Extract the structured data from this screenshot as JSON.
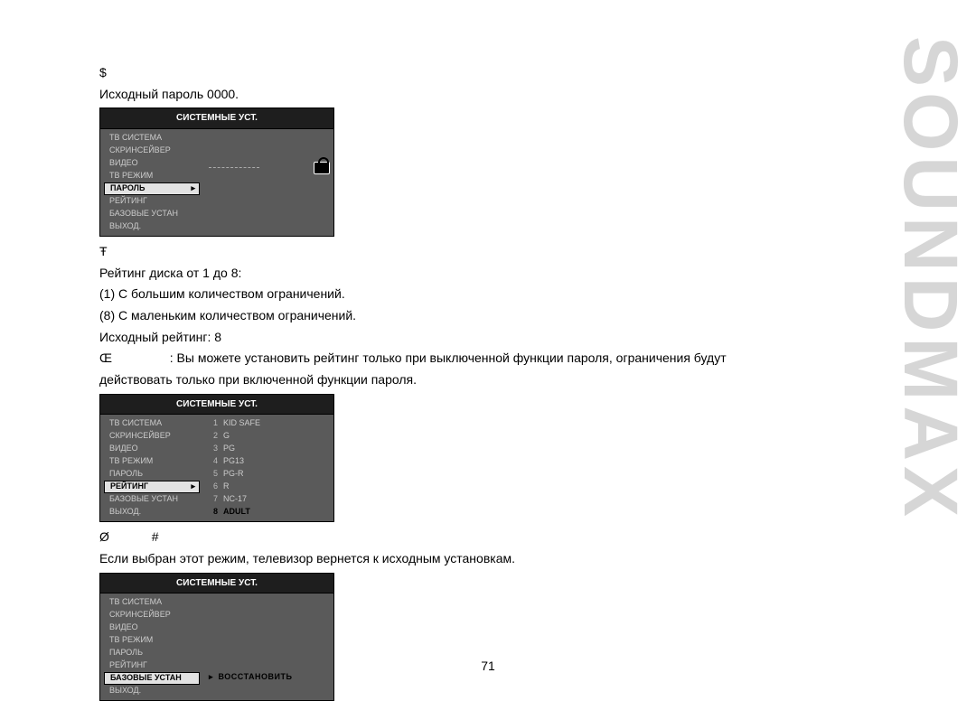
{
  "brand_vertical": "SOUNDMAX",
  "page_number": "71",
  "text": {
    "sym1": "$",
    "line1": "Исходный пароль 0000.",
    "sym2": "Ŧ",
    "line2": "Рейтинг диска от 1 до 8:",
    "line3": "(1) С большим количеством ограничений.",
    "line4": "(8) С маленьким количеством ограничений.",
    "line5": "Исходный рейтинг: 8",
    "sym3": "Œ",
    "line6a": ": Вы можете установить рейтинг только при выключенной функции пароля, ограничения будут",
    "line6b": "действовать только при включенной функции пароля.",
    "sym4a": "Ø",
    "sym4b": "#",
    "line7": "Если выбран этот режим, телевизор вернется к исходным установкам."
  },
  "osd_title": "СИСТЕМНЫЕ УСТ.",
  "menu_items": [
    "ТВ СИСТЕМА",
    "СКРИНСЕЙВЕР",
    "ВИДЕО",
    "ТВ РЕЖИМ",
    "ПАРОЛЬ",
    "РЕЙТИНГ",
    "БАЗОВЫЕ УСТАН",
    "ВЫХОД."
  ],
  "osd1_selected_index": 4,
  "osd2_selected_index": 5,
  "osd2_ratings": [
    {
      "n": "1",
      "label": "KID SAFE"
    },
    {
      "n": "2",
      "label": "G"
    },
    {
      "n": "3",
      "label": "PG"
    },
    {
      "n": "4",
      "label": "PG13"
    },
    {
      "n": "5",
      "label": "PG-R"
    },
    {
      "n": "6",
      "label": "R"
    },
    {
      "n": "7",
      "label": "NC-17"
    },
    {
      "n": "8",
      "label": "ADULT"
    }
  ],
  "osd2_selected_rating_index": 7,
  "osd3_selected_index": 6,
  "osd3_right_label": "ВОССТАНОВИТЬ"
}
